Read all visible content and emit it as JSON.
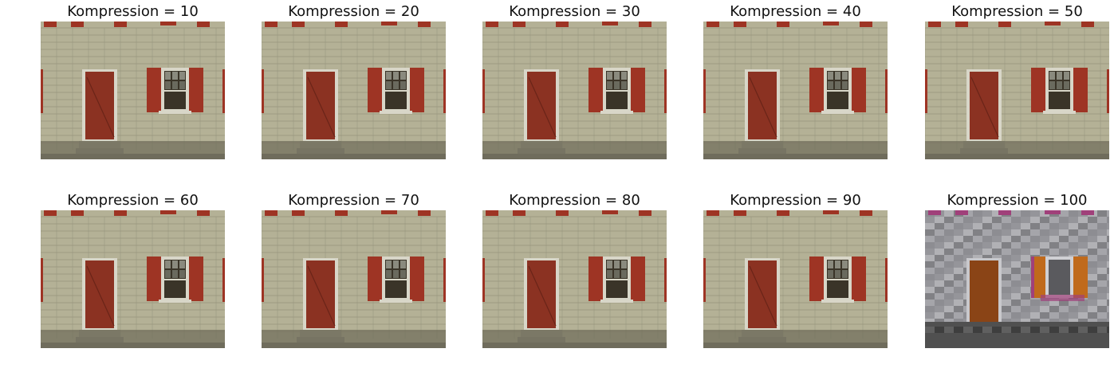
{
  "panels": [
    {
      "title": "Kompression = 10",
      "variant": "color"
    },
    {
      "title": "Kompression = 20",
      "variant": "color"
    },
    {
      "title": "Kompression = 30",
      "variant": "color"
    },
    {
      "title": "Kompression = 40",
      "variant": "color"
    },
    {
      "title": "Kompression = 50",
      "variant": "color"
    },
    {
      "title": "Kompression = 60",
      "variant": "color"
    },
    {
      "title": "Kompression = 70",
      "variant": "color"
    },
    {
      "title": "Kompression = 80",
      "variant": "color"
    },
    {
      "title": "Kompression = 90",
      "variant": "color"
    },
    {
      "title": "Kompression = 100",
      "variant": "degraded"
    }
  ],
  "colors": {
    "wall": "#b4b196",
    "wall_dark": "#8a8873",
    "door": "#8b3222",
    "shutter": "#9e3424",
    "frame": "#d8d6c8",
    "ground": "#6f6c5c",
    "degraded_wall": "#9a9a9e",
    "degraded_door": "#8a4416",
    "degraded_shutter": "#c06a1c",
    "degraded_accent": "#a0407a",
    "degraded_ground": "#505050"
  }
}
